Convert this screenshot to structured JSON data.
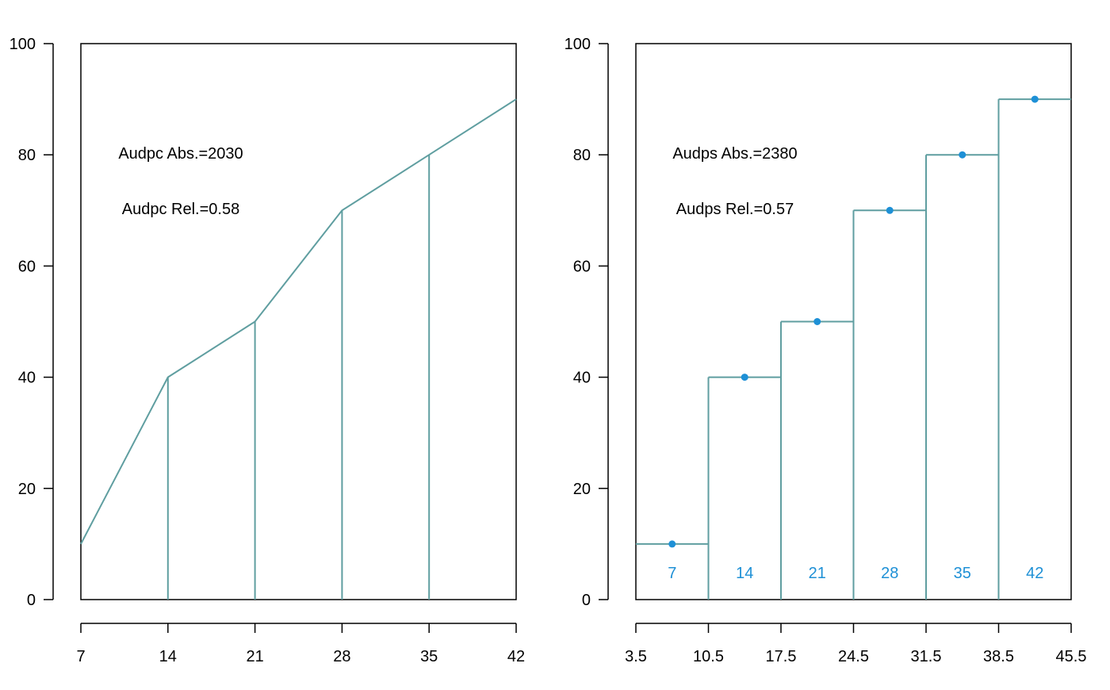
{
  "colors": {
    "curve": "#5F9EA0",
    "points": "#1E90D6",
    "axis": "#000000"
  },
  "chart_data": [
    {
      "type": "line",
      "x": [
        7,
        14,
        21,
        28,
        35,
        42
      ],
      "y": [
        10,
        40,
        50,
        70,
        80,
        90
      ],
      "xlim": [
        7,
        42
      ],
      "ylim": [
        0,
        100
      ],
      "xticks": [
        "7",
        "14",
        "21",
        "28",
        "35",
        "42"
      ],
      "yticks": [
        "0",
        "20",
        "40",
        "60",
        "80",
        "100"
      ],
      "annotations": {
        "abs": "Audpc Abs.=2030",
        "rel": "Audpc Rel.=0.58"
      },
      "grid": false
    },
    {
      "type": "bar",
      "categories": [
        "7",
        "14",
        "21",
        "28",
        "35",
        "42"
      ],
      "bin_edges": [
        3.5,
        10.5,
        17.5,
        24.5,
        31.5,
        38.5,
        45.5
      ],
      "x": [
        7,
        14,
        21,
        28,
        35,
        42
      ],
      "values": [
        10,
        40,
        50,
        70,
        80,
        90
      ],
      "xlim": [
        3.5,
        45.5
      ],
      "ylim": [
        0,
        100
      ],
      "xticks": [
        "3.5",
        "10.5",
        "17.5",
        "24.5",
        "31.5",
        "38.5",
        "45.5"
      ],
      "yticks": [
        "0",
        "20",
        "40",
        "60",
        "80",
        "100"
      ],
      "annotations": {
        "abs": "Audps Abs.=2380",
        "rel": "Audps Rel.=0.57"
      },
      "grid": false
    }
  ]
}
